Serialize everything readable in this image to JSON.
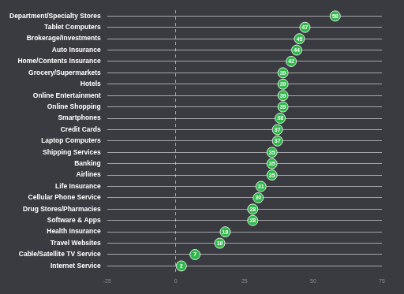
{
  "chart_data": {
    "type": "scatter",
    "orientation": "horizontal",
    "categories": [
      "Department/Specialty Stores",
      "Tablet Computers",
      "Brokerage/Investments",
      "Auto Insurance",
      "Home/Contents Insurance",
      "Grocery/Supermarkets",
      "Hotels",
      "Online Entertainment",
      "Online Shopping",
      "Smartphones",
      "Credit Cards",
      "Laptop Computers",
      "Shipping Services",
      "Banking",
      "Airlines",
      "Life Insurance",
      "Cellular Phone Service",
      "Drug Stores/Pharmacies",
      "Software & Apps",
      "Health Insurance",
      "Travel Websites",
      "Cable/Satellite TV Service",
      "Internet Service"
    ],
    "values": [
      58,
      47,
      45,
      44,
      42,
      39,
      39,
      39,
      39,
      38,
      37,
      37,
      35,
      35,
      35,
      31,
      30,
      28,
      28,
      18,
      16,
      7,
      2
    ],
    "color": "#2fb84a",
    "marker": "circle",
    "data_labels": true,
    "grid": true,
    "xlim": [
      -25,
      75
    ],
    "xticks": [
      -25,
      0,
      25,
      50,
      75
    ]
  }
}
